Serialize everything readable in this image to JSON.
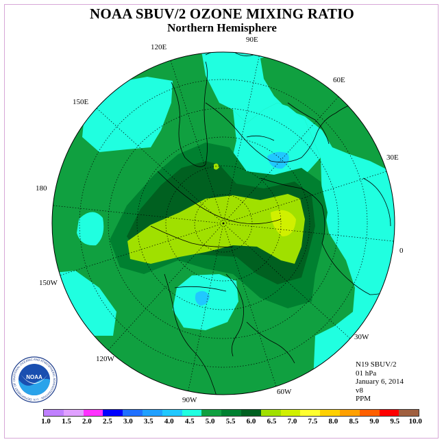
{
  "title": "NOAA SBUV/2 OZONE MIXING RATIO",
  "subtitle": "Northern Hemisphere",
  "meridian_labels": [
    {
      "text": "90E",
      "key": "e90"
    },
    {
      "text": "60E",
      "key": "e60"
    },
    {
      "text": "30E",
      "key": "e30"
    },
    {
      "text": "0",
      "key": "zero"
    },
    {
      "text": "30W",
      "key": "w30"
    },
    {
      "text": "60W",
      "key": "w60"
    },
    {
      "text": "90W",
      "key": "w90"
    },
    {
      "text": "120W",
      "key": "w120"
    },
    {
      "text": "150W",
      "key": "w150"
    },
    {
      "text": "180",
      "key": "d180"
    },
    {
      "text": "150E",
      "key": "e150"
    },
    {
      "text": "120E",
      "key": "e120"
    }
  ],
  "info": {
    "satellite": "N19 SBUV/2",
    "level": "01 hPa",
    "date": "January 6, 2014",
    "version": "v8",
    "units": "PPM"
  },
  "legend": {
    "ticks": [
      "1.0",
      "1.5",
      "2.0",
      "2.5",
      "3.0",
      "3.5",
      "4.0",
      "4.5",
      "5.0",
      "5.5",
      "6.0",
      "6.5",
      "7.0",
      "7.5",
      "8.0",
      "8.5",
      "9.0",
      "9.5",
      "10.0"
    ],
    "colors": [
      "#c080ff",
      "#e0a0ff",
      "#ff30ff",
      "#0000ff",
      "#2070ff",
      "#20a0ff",
      "#20c8ff",
      "#20ffe0",
      "#10a040",
      "#008030",
      "#006020",
      "#a0e000",
      "#d0f000",
      "#ffff30",
      "#ffd000",
      "#ffa000",
      "#ff6000",
      "#ff0000",
      "#a06040"
    ]
  },
  "logo_text": "NOAA",
  "logo_ring_text": "NATIONAL OCEANIC AND ATMOSPHERIC ADMINISTRATION · U.S. DEPARTMENT OF COMMERCE",
  "colors": {
    "ocean_base": "#10a040",
    "level_4_5": "#20ffe0",
    "level_4_0": "#20c8ff",
    "level_5_5": "#008030",
    "level_6_0": "#006020",
    "level_6_5": "#a0e000",
    "level_7_0": "#d0f000"
  }
}
